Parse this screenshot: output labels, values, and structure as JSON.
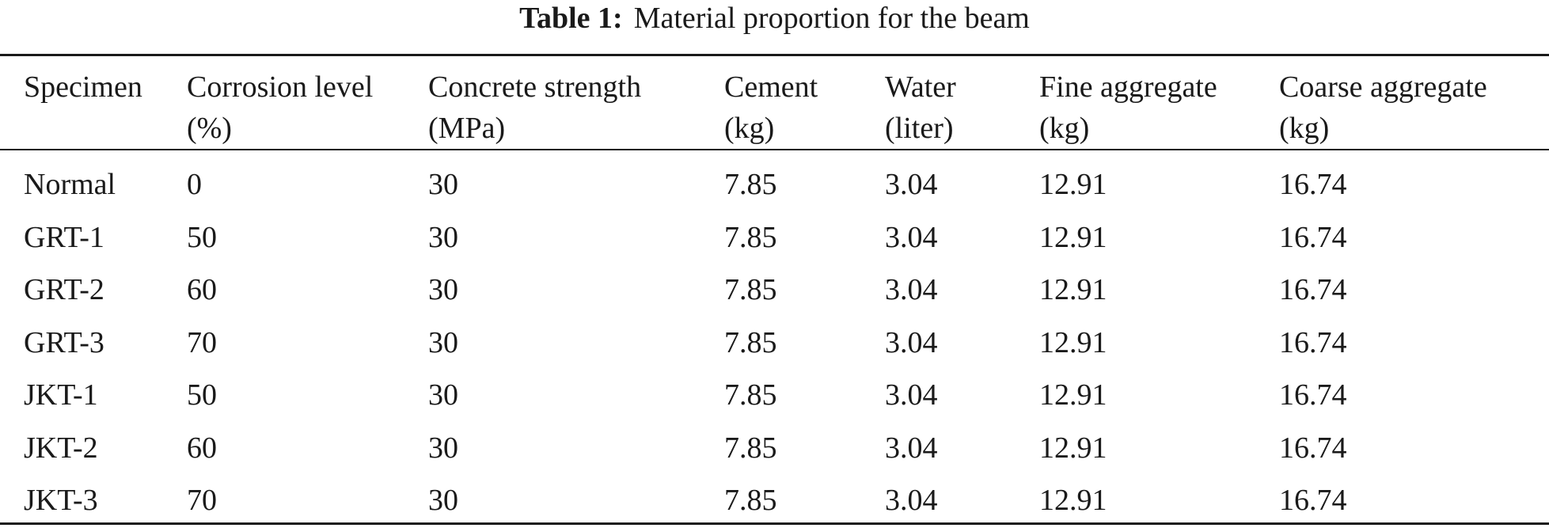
{
  "caption": {
    "label": "Table 1:",
    "text": "Material proportion for the beam"
  },
  "table": {
    "headers": [
      {
        "line1": "Specimen",
        "line2": ""
      },
      {
        "line1": "Corrosion level",
        "line2": "(%)"
      },
      {
        "line1": "Concrete strength",
        "line2": "(MPa)"
      },
      {
        "line1": "Cement",
        "line2": "(kg)"
      },
      {
        "line1": "Water",
        "line2": "(liter)"
      },
      {
        "line1": "Fine aggregate",
        "line2": "(kg)"
      },
      {
        "line1": "Coarse aggregate",
        "line2": "(kg)"
      }
    ],
    "rows": [
      [
        "Normal",
        "0",
        "30",
        "7.85",
        "3.04",
        "12.91",
        "16.74"
      ],
      [
        "GRT-1",
        "50",
        "30",
        "7.85",
        "3.04",
        "12.91",
        "16.74"
      ],
      [
        "GRT-2",
        "60",
        "30",
        "7.85",
        "3.04",
        "12.91",
        "16.74"
      ],
      [
        "GRT-3",
        "70",
        "30",
        "7.85",
        "3.04",
        "12.91",
        "16.74"
      ],
      [
        "JKT-1",
        "50",
        "30",
        "7.85",
        "3.04",
        "12.91",
        "16.74"
      ],
      [
        "JKT-2",
        "60",
        "30",
        "7.85",
        "3.04",
        "12.91",
        "16.74"
      ],
      [
        "JKT-3",
        "70",
        "30",
        "7.85",
        "3.04",
        "12.91",
        "16.74"
      ]
    ]
  }
}
